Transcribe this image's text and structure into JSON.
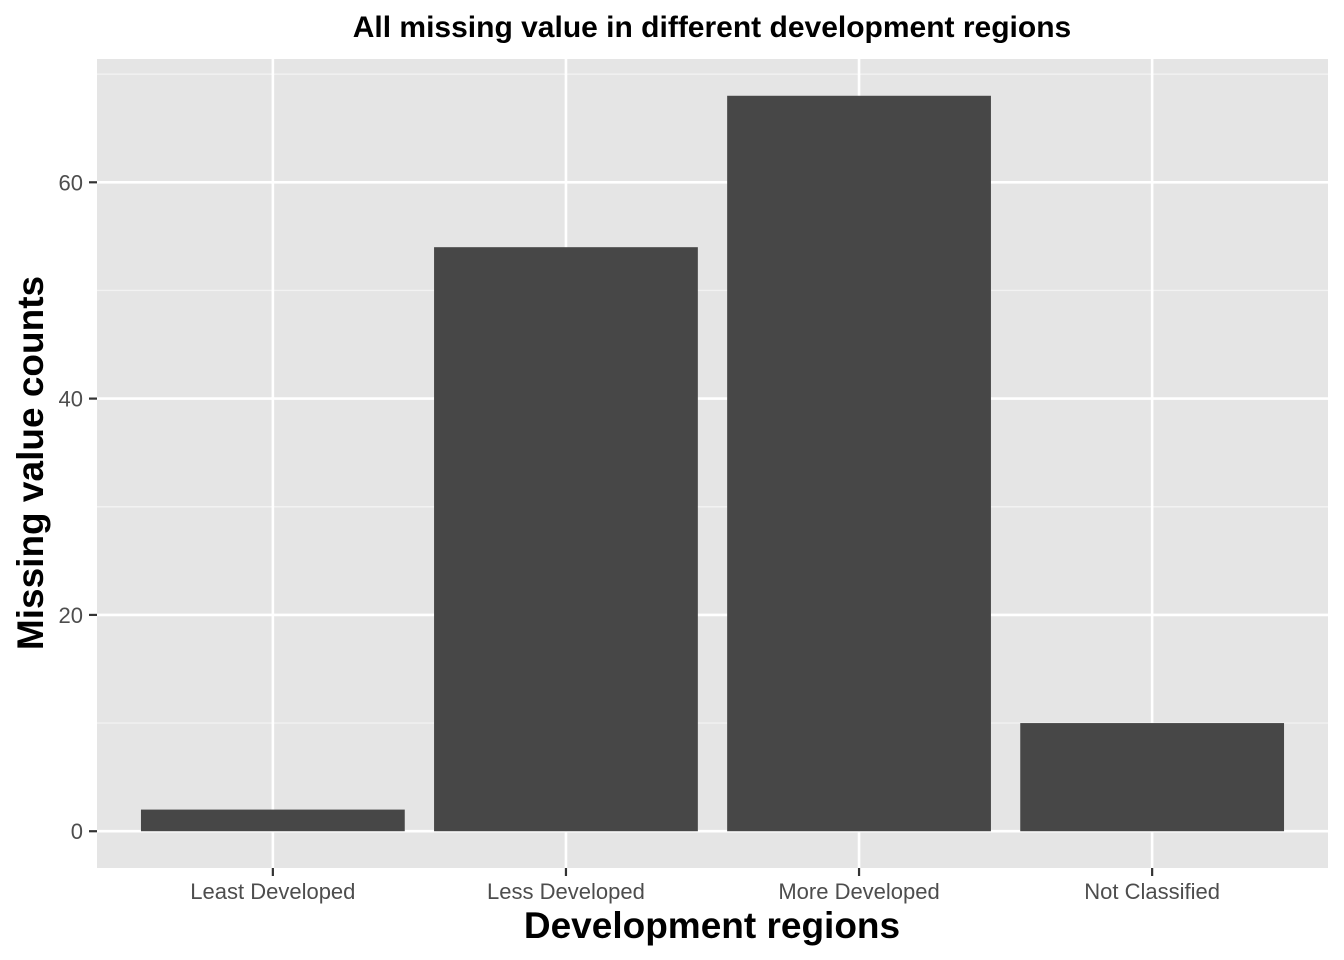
{
  "chart_data": {
    "type": "bar",
    "title": "All missing value in different development regions",
    "xlabel": "Development regions",
    "ylabel": "Missing value counts",
    "categories": [
      "Least Developed",
      "Less Developed",
      "More Developed",
      "Not Classified"
    ],
    "values": [
      2,
      54,
      68,
      10
    ],
    "ylim": [
      -3.4,
      71.4
    ],
    "yticks": [
      0,
      20,
      40,
      60
    ],
    "grid": true,
    "legend": "none",
    "colors": {
      "panel_background": "#e5e5e5",
      "grid_major": "#ffffff",
      "grid_minor": "#f2f2f2",
      "bar_fill": "#474747",
      "tick_text": "#4d4d4d",
      "axis_ticks": "#333333",
      "title_text": "#000000"
    }
  }
}
